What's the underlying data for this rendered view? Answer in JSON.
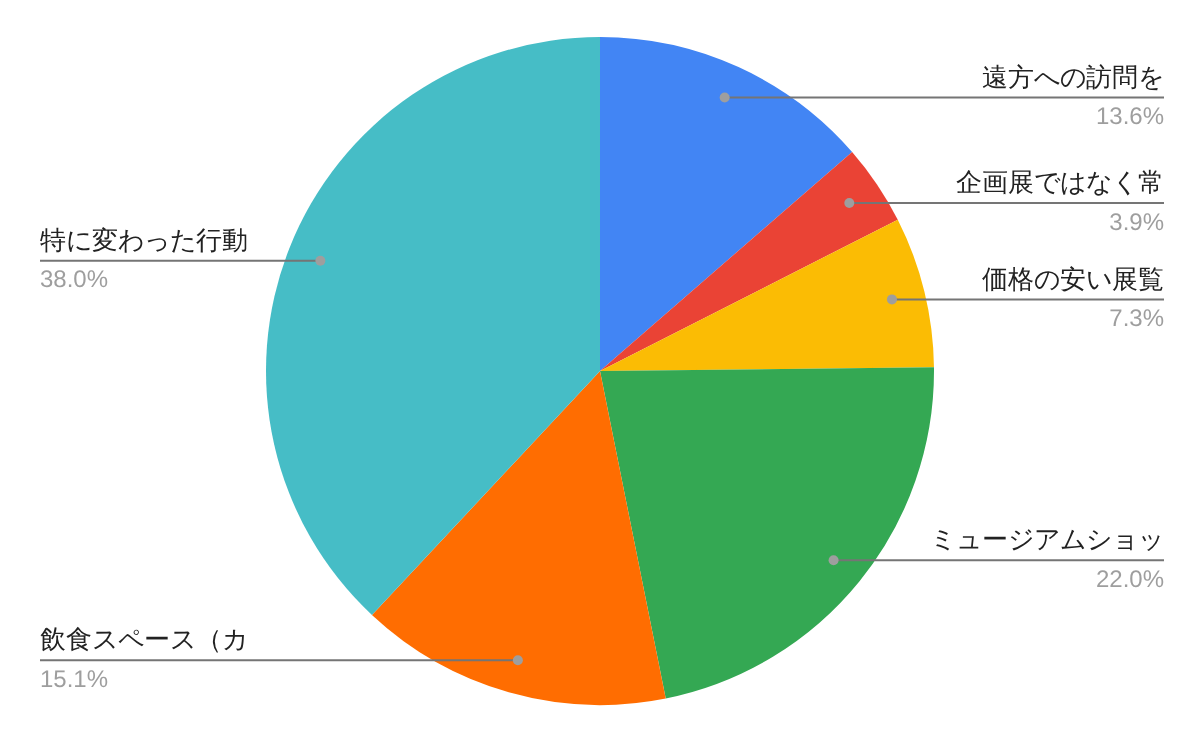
{
  "chart_data": {
    "type": "pie",
    "categories": [
      "遠方への訪問を",
      "企画展ではなく常",
      "価格の安い展覧",
      "ミュージアムショッ",
      "飲食スペース（カ",
      "特に変わった行動"
    ],
    "values": [
      13.6,
      3.9,
      7.3,
      22.0,
      15.1,
      38.0
    ],
    "value_labels": [
      "13.6%",
      "3.9%",
      "7.3%",
      "22.0%",
      "15.1%",
      "38.0%"
    ],
    "colors": [
      "#4285f4",
      "#ea4335",
      "#fbbc04",
      "#34a853",
      "#ff6d01",
      "#46bdc6"
    ],
    "legend": false
  }
}
